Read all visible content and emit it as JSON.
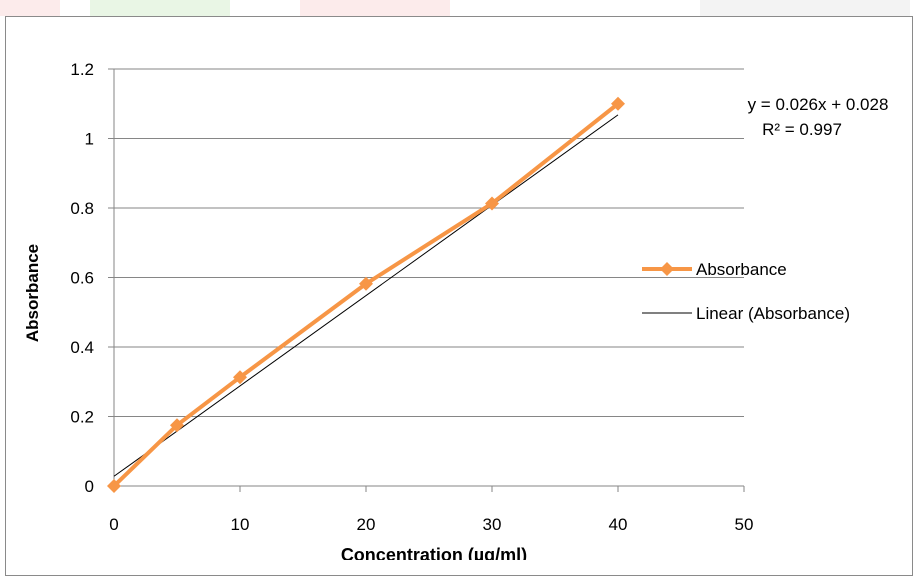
{
  "chart_data": {
    "type": "line",
    "xlabel": "Concentration (µg/ml)",
    "ylabel": "Absorbance",
    "xlim": [
      0,
      50
    ],
    "ylim": [
      0,
      1.2
    ],
    "x_ticks": [
      "0",
      "10",
      "20",
      "30",
      "40",
      "50"
    ],
    "y_ticks": [
      "0",
      "0.2",
      "0.4",
      "0.6",
      "0.8",
      "1",
      "1.2"
    ],
    "grid": "horizontal",
    "series": [
      {
        "name": "Absorbance",
        "marker": "diamond",
        "color": "#f79646",
        "x": [
          0,
          5,
          10,
          20,
          30,
          40
        ],
        "y": [
          0.0,
          0.175,
          0.313,
          0.582,
          0.813,
          1.1
        ]
      },
      {
        "name": "Linear (Absorbance)",
        "kind": "trendline",
        "color": "#000000",
        "slope": 0.026,
        "intercept": 0.028
      }
    ],
    "annotation": {
      "equation": "y = 0.026x + 0.028",
      "r_squared": "R² = 0.997"
    },
    "legend": {
      "placement": "right",
      "entries": [
        "Absorbance",
        "Linear (Absorbance)"
      ]
    }
  },
  "colors": {
    "watermark_red": "#f4a3a3",
    "watermark_green": "#a6d99a"
  }
}
